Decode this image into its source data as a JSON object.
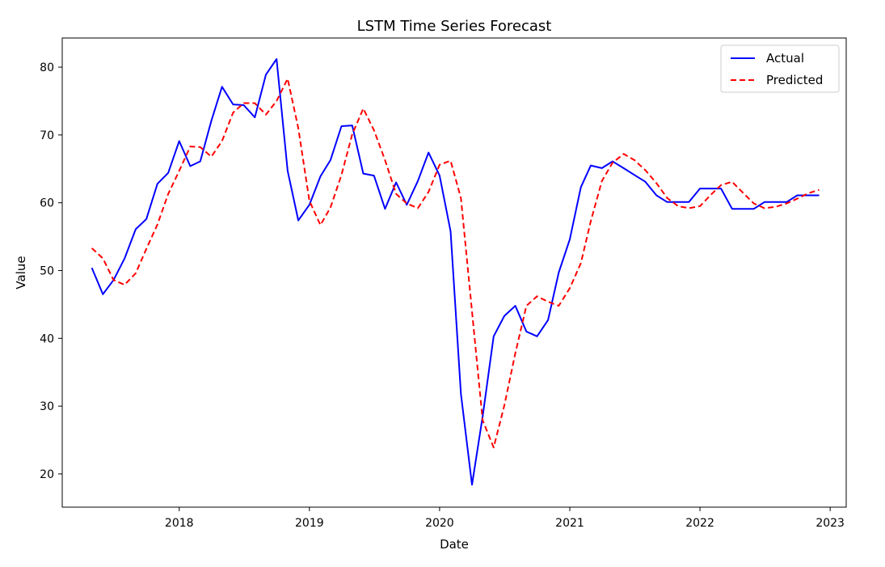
{
  "chart_data": {
    "type": "line",
    "title": "LSTM Time Series Forecast",
    "xlabel": "Date",
    "ylabel": "Value",
    "x_ticks": [
      "2018",
      "2019",
      "2020",
      "2021",
      "2022",
      "2023"
    ],
    "y_ticks": [
      20,
      30,
      40,
      50,
      60,
      70,
      80
    ],
    "xlim": [
      "2017-02-07",
      "2023-02-15"
    ],
    "ylim": [
      15.1,
      84.3
    ],
    "grid": false,
    "legend_position": "top-right",
    "x": [
      "2017-05",
      "2017-06",
      "2017-07",
      "2017-08",
      "2017-09",
      "2017-10",
      "2017-11",
      "2017-12",
      "2018-01",
      "2018-02",
      "2018-03",
      "2018-04",
      "2018-05",
      "2018-06",
      "2018-07",
      "2018-08",
      "2018-09",
      "2018-10",
      "2018-11",
      "2018-12",
      "2019-01",
      "2019-02",
      "2019-03",
      "2019-04",
      "2019-05",
      "2019-06",
      "2019-07",
      "2019-08",
      "2019-09",
      "2019-10",
      "2019-11",
      "2019-12",
      "2020-01",
      "2020-02",
      "2020-03",
      "2020-04",
      "2020-05",
      "2020-06",
      "2020-07",
      "2020-08",
      "2020-09",
      "2020-10",
      "2020-11",
      "2020-12",
      "2021-01",
      "2021-02",
      "2021-03",
      "2021-04",
      "2021-05",
      "2021-06",
      "2021-07",
      "2021-08",
      "2021-09",
      "2021-10",
      "2021-11",
      "2021-12",
      "2022-01",
      "2022-02",
      "2022-03",
      "2022-04",
      "2022-05",
      "2022-06",
      "2022-07",
      "2022-08",
      "2022-09",
      "2022-10",
      "2022-11",
      "2022-12"
    ],
    "series": [
      {
        "name": "Actual",
        "color": "#0000ff",
        "style": "solid",
        "values": [
          50.4,
          46.5,
          48.6,
          51.8,
          56.1,
          57.6,
          62.8,
          64.4,
          69.1,
          65.4,
          66.1,
          72.1,
          77.1,
          74.5,
          74.4,
          72.6,
          78.9,
          81.2,
          64.7,
          57.4,
          59.7,
          63.9,
          66.3,
          71.3,
          71.4,
          64.3,
          64.0,
          59.1,
          63.0,
          59.7,
          63.2,
          67.4,
          64.0,
          55.8,
          31.8,
          18.4,
          28.5,
          40.3,
          43.3,
          44.8,
          41.0,
          40.3,
          42.7,
          49.7,
          54.6,
          62.3,
          65.5,
          65.1,
          66.1,
          65.1,
          64.1,
          63.1,
          61.1,
          60.1,
          60.1,
          60.1,
          62.1,
          62.1,
          62.1,
          59.1,
          59.1,
          59.1,
          60.1,
          60.1,
          60.1,
          61.1,
          61.1,
          61.1
        ]
      },
      {
        "name": "Predicted",
        "color": "#ff0000",
        "style": "dashed",
        "values": [
          53.3,
          51.8,
          48.6,
          47.9,
          49.6,
          53.2,
          56.8,
          61.3,
          64.7,
          68.3,
          68.2,
          66.8,
          69.1,
          73.3,
          74.7,
          74.7,
          73.0,
          75.0,
          78.3,
          71.0,
          60.3,
          56.7,
          59.3,
          64.1,
          70.1,
          73.9,
          70.7,
          66.3,
          61.3,
          59.9,
          59.2,
          61.6,
          65.6,
          66.2,
          60.7,
          44.0,
          27.9,
          23.9,
          30.1,
          37.8,
          44.8,
          46.2,
          45.4,
          44.8,
          47.4,
          51.1,
          57.3,
          63.2,
          65.9,
          67.2,
          66.3,
          64.8,
          62.9,
          60.7,
          59.5,
          59.2,
          59.5,
          61.2,
          62.6,
          63.1,
          61.5,
          59.9,
          59.2,
          59.4,
          59.9,
          60.6,
          61.4,
          61.9
        ]
      }
    ]
  }
}
